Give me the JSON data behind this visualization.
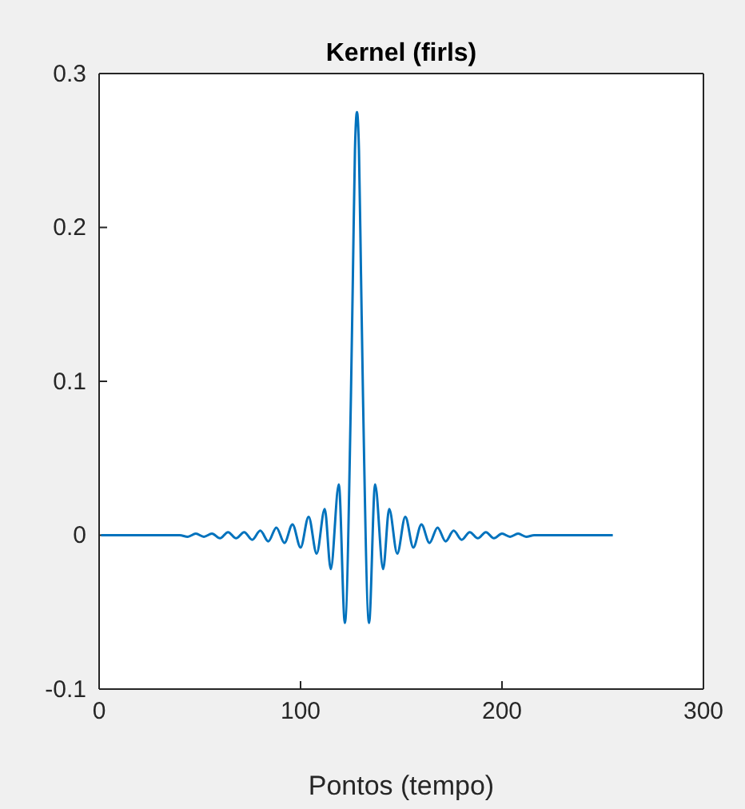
{
  "chart_data": {
    "type": "line",
    "title": "Kernel (firls)",
    "xlabel": "Pontos (tempo)",
    "xlim": [
      0,
      300
    ],
    "xticks": [
      0,
      100,
      200,
      300
    ],
    "ylim": [
      -0.1,
      0.3
    ],
    "yticks": [
      -0.1,
      0,
      0.1,
      0.2,
      0.3
    ],
    "grid": false,
    "marker": "none",
    "line_style": "solid",
    "series": [
      {
        "color": "#0072bd",
        "x": [
          1,
          40,
          44,
          48,
          52,
          56,
          60,
          64,
          68,
          72,
          76,
          80,
          84,
          88,
          92,
          96,
          100,
          104,
          108,
          112,
          115,
          119,
          122,
          125,
          126,
          127,
          128,
          129,
          130,
          131,
          134,
          137,
          141,
          144,
          148,
          152,
          156,
          160,
          164,
          168,
          172,
          176,
          180,
          184,
          188,
          192,
          196,
          200,
          204,
          208,
          212,
          216,
          255
        ],
        "values": [
          0,
          0,
          -0.001,
          0.001,
          -0.001,
          0.001,
          -0.002,
          0.002,
          -0.002,
          0.002,
          -0.003,
          0.003,
          -0.004,
          0.005,
          -0.005,
          0.007,
          -0.008,
          0.012,
          -0.012,
          0.017,
          -0.022,
          0.033,
          -0.057,
          0.09,
          0.17,
          0.25,
          0.275,
          0.25,
          0.17,
          0.09,
          -0.057,
          0.033,
          -0.022,
          0.017,
          -0.012,
          0.012,
          -0.008,
          0.007,
          -0.005,
          0.005,
          -0.004,
          0.003,
          -0.003,
          0.002,
          -0.002,
          0.002,
          -0.002,
          0.001,
          -0.001,
          0.001,
          -0.001,
          0,
          0
        ]
      }
    ]
  }
}
